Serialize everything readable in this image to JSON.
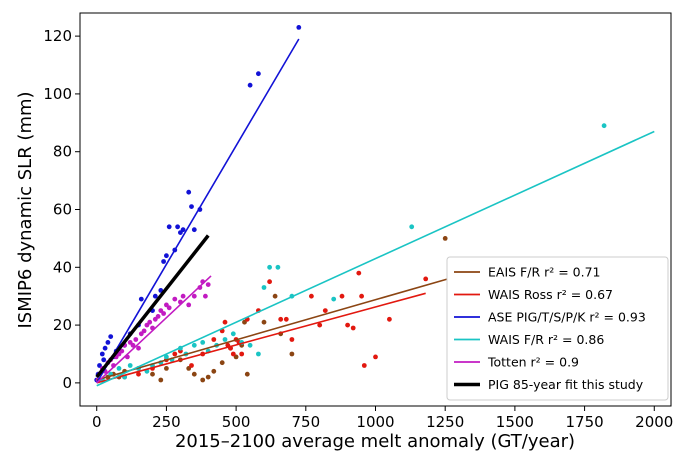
{
  "chart_data": {
    "type": "scatter",
    "xlabel": "2015–2100 average melt anomaly (GT/year)",
    "ylabel": "ISMIP6 dynamic SLR (mm)",
    "xlim": [
      -60,
      2060
    ],
    "ylim": [
      -8,
      128
    ],
    "xticks": [
      0,
      250,
      500,
      750,
      1000,
      1250,
      1500,
      1750,
      2000
    ],
    "yticks": [
      0,
      20,
      40,
      60,
      80,
      100,
      120
    ],
    "grid": false,
    "legend_position": "bottom-right",
    "series": [
      {
        "name": "EAIS F/R r² = 0.71",
        "color": "#8B4513",
        "fit": [
          [
            0,
            1
          ],
          [
            1260,
            36
          ]
        ],
        "points": [
          [
            20,
            1
          ],
          [
            40,
            2
          ],
          [
            60,
            3
          ],
          [
            80,
            2
          ],
          [
            100,
            4
          ],
          [
            150,
            5
          ],
          [
            200,
            3
          ],
          [
            230,
            1
          ],
          [
            250,
            5
          ],
          [
            300,
            8
          ],
          [
            330,
            5
          ],
          [
            350,
            3
          ],
          [
            380,
            1
          ],
          [
            400,
            2
          ],
          [
            420,
            4
          ],
          [
            450,
            7
          ],
          [
            480,
            12
          ],
          [
            500,
            9
          ],
          [
            520,
            13
          ],
          [
            530,
            21
          ],
          [
            540,
            3
          ],
          [
            600,
            21
          ],
          [
            640,
            30
          ],
          [
            660,
            17
          ],
          [
            700,
            10
          ],
          [
            1250,
            50
          ]
        ]
      },
      {
        "name": "WAIS Ross r² = 0.67",
        "color": "#E2180F",
        "fit": [
          [
            0,
            0
          ],
          [
            1180,
            31
          ]
        ],
        "points": [
          [
            100,
            2
          ],
          [
            150,
            3
          ],
          [
            200,
            5
          ],
          [
            250,
            8
          ],
          [
            280,
            10
          ],
          [
            300,
            11
          ],
          [
            340,
            6
          ],
          [
            380,
            10
          ],
          [
            420,
            15
          ],
          [
            450,
            18
          ],
          [
            460,
            21
          ],
          [
            470,
            13
          ],
          [
            480,
            12
          ],
          [
            490,
            10
          ],
          [
            500,
            15
          ],
          [
            510,
            14
          ],
          [
            520,
            10
          ],
          [
            540,
            22
          ],
          [
            580,
            25
          ],
          [
            620,
            35
          ],
          [
            660,
            22
          ],
          [
            680,
            22
          ],
          [
            700,
            15
          ],
          [
            770,
            30
          ],
          [
            800,
            20
          ],
          [
            820,
            25
          ],
          [
            880,
            30
          ],
          [
            900,
            20
          ],
          [
            920,
            19
          ],
          [
            940,
            38
          ],
          [
            950,
            30
          ],
          [
            960,
            6
          ],
          [
            1000,
            9
          ],
          [
            1050,
            22
          ],
          [
            1180,
            36
          ]
        ]
      },
      {
        "name": "ASE PIG/T/S/P/K r² = 0.93",
        "color": "#1212D6",
        "fit": [
          [
            0,
            0
          ],
          [
            725,
            119
          ]
        ],
        "points": [
          [
            0,
            1
          ],
          [
            5,
            3
          ],
          [
            10,
            6
          ],
          [
            20,
            10
          ],
          [
            25,
            8
          ],
          [
            30,
            12
          ],
          [
            40,
            14
          ],
          [
            50,
            16
          ],
          [
            60,
            9
          ],
          [
            70,
            11
          ],
          [
            80,
            12
          ],
          [
            100,
            13
          ],
          [
            120,
            17
          ],
          [
            150,
            20
          ],
          [
            160,
            29
          ],
          [
            200,
            25
          ],
          [
            210,
            30
          ],
          [
            230,
            32
          ],
          [
            240,
            42
          ],
          [
            250,
            44
          ],
          [
            260,
            54
          ],
          [
            280,
            46
          ],
          [
            290,
            54
          ],
          [
            300,
            52
          ],
          [
            310,
            53
          ],
          [
            330,
            66
          ],
          [
            340,
            61
          ],
          [
            350,
            53
          ],
          [
            370,
            60
          ],
          [
            550,
            103
          ],
          [
            580,
            107
          ],
          [
            725,
            123
          ]
        ]
      },
      {
        "name": "WAIS F/R r² = 0.86",
        "color": "#1AC4C4",
        "fit": [
          [
            0,
            -1
          ],
          [
            2000,
            87
          ]
        ],
        "points": [
          [
            20,
            1
          ],
          [
            50,
            3
          ],
          [
            80,
            5
          ],
          [
            100,
            2
          ],
          [
            120,
            6
          ],
          [
            150,
            5
          ],
          [
            180,
            4
          ],
          [
            200,
            6
          ],
          [
            230,
            7
          ],
          [
            250,
            9
          ],
          [
            270,
            8
          ],
          [
            300,
            12
          ],
          [
            320,
            10
          ],
          [
            350,
            13
          ],
          [
            380,
            14
          ],
          [
            400,
            11
          ],
          [
            430,
            13
          ],
          [
            460,
            15
          ],
          [
            490,
            17
          ],
          [
            520,
            14
          ],
          [
            550,
            13
          ],
          [
            580,
            10
          ],
          [
            600,
            33
          ],
          [
            620,
            40
          ],
          [
            650,
            40
          ],
          [
            700,
            30
          ],
          [
            850,
            29
          ],
          [
            1130,
            54
          ],
          [
            1820,
            89
          ]
        ]
      },
      {
        "name": "Totten r² = 0.9",
        "color": "#C21BC2",
        "fit": [
          [
            0,
            0
          ],
          [
            410,
            37
          ]
        ],
        "points": [
          [
            5,
            1
          ],
          [
            10,
            3
          ],
          [
            20,
            5
          ],
          [
            30,
            4
          ],
          [
            40,
            7
          ],
          [
            50,
            8
          ],
          [
            60,
            6
          ],
          [
            70,
            9
          ],
          [
            80,
            10
          ],
          [
            90,
            11
          ],
          [
            100,
            13
          ],
          [
            110,
            9
          ],
          [
            120,
            14
          ],
          [
            130,
            13
          ],
          [
            140,
            15
          ],
          [
            150,
            12
          ],
          [
            160,
            17
          ],
          [
            170,
            18
          ],
          [
            180,
            20
          ],
          [
            190,
            21
          ],
          [
            200,
            19
          ],
          [
            210,
            22
          ],
          [
            220,
            23
          ],
          [
            230,
            25
          ],
          [
            240,
            24
          ],
          [
            250,
            27
          ],
          [
            260,
            26
          ],
          [
            280,
            29
          ],
          [
            300,
            28
          ],
          [
            310,
            30
          ],
          [
            330,
            27
          ],
          [
            350,
            30
          ],
          [
            370,
            33
          ],
          [
            380,
            35
          ],
          [
            390,
            30
          ],
          [
            400,
            34
          ]
        ]
      },
      {
        "name": "PIG 85-year fit this study",
        "color": "#000000",
        "fit": [
          [
            0,
            2
          ],
          [
            400,
            51
          ]
        ],
        "points": []
      }
    ]
  }
}
